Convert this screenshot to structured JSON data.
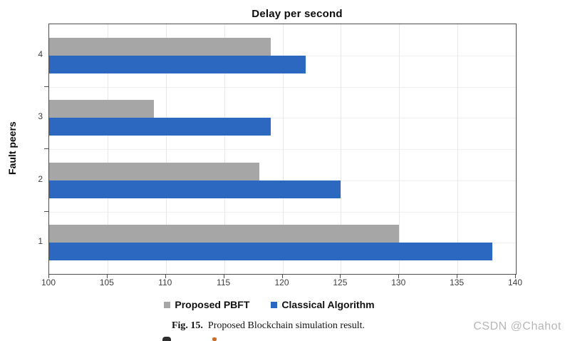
{
  "watermark": "CSDN @Chahot",
  "caption": {
    "label": "Fig. 15.",
    "text": "Proposed Blockchain simulation result."
  },
  "chart_data": {
    "type": "bar",
    "orientation": "horizontal",
    "title": "Delay per second",
    "xlabel": "",
    "ylabel": "Fault peers",
    "categories": [
      "4",
      "3",
      "2",
      "1"
    ],
    "categories_order": "top-to-bottom",
    "series": [
      {
        "name": "Proposed PBFT",
        "color": "#a6a6a6",
        "values": [
          119,
          109,
          118,
          130
        ]
      },
      {
        "name": "Classical Algorithm",
        "color": "#2d68c0",
        "values": [
          122,
          119,
          125,
          138
        ]
      }
    ],
    "xlim": [
      100,
      140
    ],
    "xticks": [
      100,
      105,
      110,
      115,
      120,
      125,
      130,
      135,
      140
    ],
    "grid": true,
    "legend_position": "bottom",
    "colors": {
      "axis": "#4d4d4d",
      "gridline": "#e8e8e8",
      "title_text": "#0d0d0d",
      "tick_text": "#3d3d3d",
      "watermark_text": "#b6b6b6"
    }
  }
}
